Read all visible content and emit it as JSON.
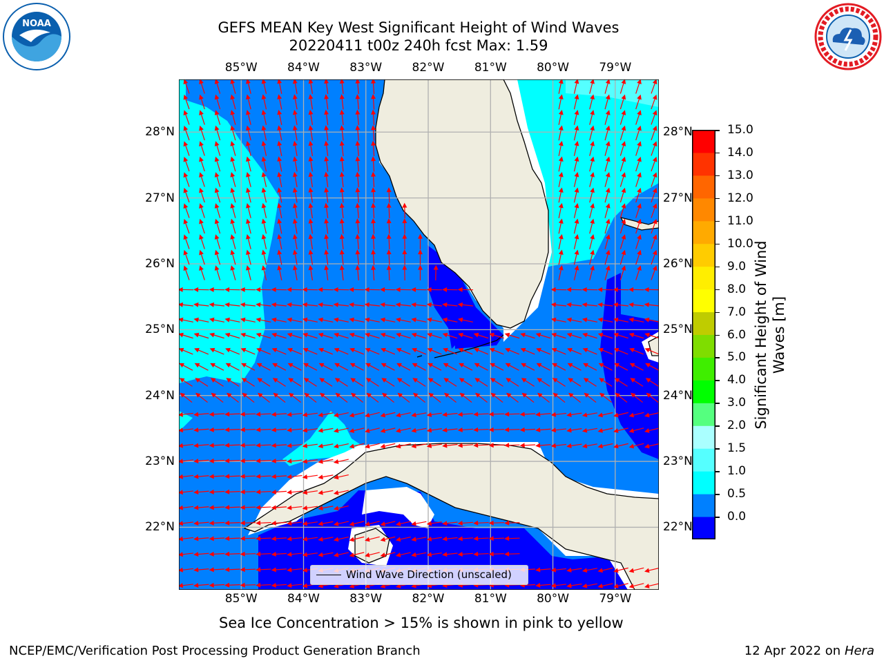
{
  "title": {
    "line1": "GEFS MEAN Key West Significant Height of Wind Waves",
    "line2": "20220411 t00z 240h fcst   Max: 1.59"
  },
  "logos": {
    "left": {
      "icon": "noaa-logo-icon",
      "text": "NOAA",
      "ring_text": "NATIONAL OCEANIC AND ATMOSPHERIC ADMINISTRATION · U.S. DEPARTMENT OF COMMERCE",
      "color": "#0a5fae"
    },
    "right": {
      "icon": "nws-logo-icon",
      "ring_text": "NATIONAL WEATHER SERVICE",
      "color": "#e31b23"
    }
  },
  "map": {
    "lon_labels": [
      "85°W",
      "84°W",
      "83°W",
      "82°W",
      "81°W",
      "80°W",
      "79°W"
    ],
    "lat_labels": [
      "28°N",
      "27°N",
      "26°N",
      "25°N",
      "24°N",
      "23°N",
      "22°N"
    ],
    "lon_range": [
      -86.0,
      -78.3
    ],
    "lat_range": [
      21.05,
      28.8
    ],
    "land_color": "#efeddf",
    "grid_color": "#b0b0b0",
    "arrow_color": "#ff0000",
    "legend_label": "Wind Wave Direction (unscaled)"
  },
  "colorbar": {
    "label": "Significant Height of Wind Waves [m]",
    "ticks": [
      "15.0",
      "14.0",
      "13.0",
      "12.0",
      "11.0",
      "10.0",
      "9.0",
      "8.0",
      "7.0",
      "6.0",
      "5.0",
      "4.0",
      "3.0",
      "2.0",
      "1.5",
      "1.0",
      "0.5",
      "0.0"
    ],
    "colors_low_to_high": [
      "#0000ff",
      "#0080ff",
      "#00ffff",
      "#55ffff",
      "#aaffff",
      "#55ff7f",
      "#00ff00",
      "#3fee00",
      "#7fdd00",
      "#bfcc00",
      "#ffff00",
      "#ffee00",
      "#ffcc00",
      "#ffaa00",
      "#ff8800",
      "#ff6600",
      "#ff3300",
      "#ff0000"
    ]
  },
  "notes": {
    "sea_ice": "Sea Ice Concentration > 15% is shown in pink to yellow",
    "footer_left": "NCEP/EMC/Verification Post Processing Product Generation Branch",
    "footer_date": "12 Apr 2022 on ",
    "footer_host": "Hera"
  }
}
